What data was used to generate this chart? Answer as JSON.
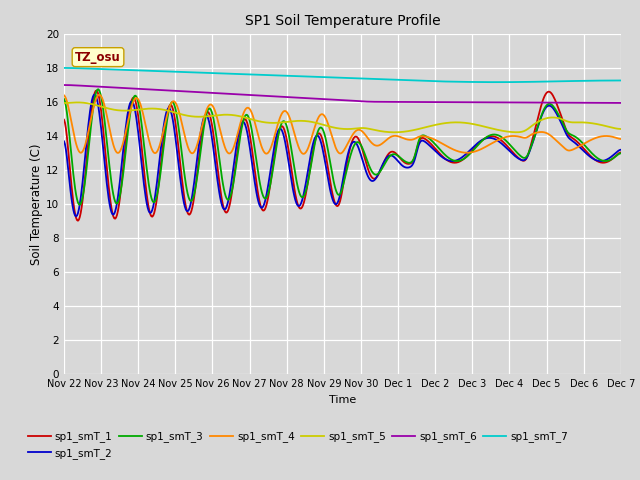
{
  "title": "SP1 Soil Temperature Profile",
  "xlabel": "Time",
  "ylabel": "Soil Temperature (C)",
  "ylim": [
    0,
    20
  ],
  "yticks": [
    0,
    2,
    4,
    6,
    8,
    10,
    12,
    14,
    16,
    18,
    20
  ],
  "bg_color": "#d8d8d8",
  "plot_bg_color": "#d8d8d8",
  "annotation_text": "TZ_osu",
  "annotation_color": "#8b0000",
  "annotation_bg": "#ffffcc",
  "annotation_border": "#c8a000",
  "series_colors": {
    "sp1_smT_1": "#cc0000",
    "sp1_smT_2": "#0000cc",
    "sp1_smT_3": "#00aa00",
    "sp1_smT_4": "#ff8800",
    "sp1_smT_5": "#cccc00",
    "sp1_smT_6": "#9900aa",
    "sp1_smT_7": "#00cccc"
  },
  "xtick_labels": [
    "Nov 22",
    "Nov 23",
    "Nov 24",
    "Nov 25",
    "Nov 26",
    "Nov 27",
    "Nov 28",
    "Nov 29",
    "Nov 30",
    "Dec 1",
    "Dec 2",
    "Dec 3",
    "Dec 4",
    "Dec 5",
    "Dec 6",
    "Dec 7"
  ],
  "xtick_positions": [
    0,
    1,
    2,
    3,
    4,
    5,
    6,
    7,
    8,
    9,
    10,
    11,
    12,
    13,
    14,
    15
  ]
}
